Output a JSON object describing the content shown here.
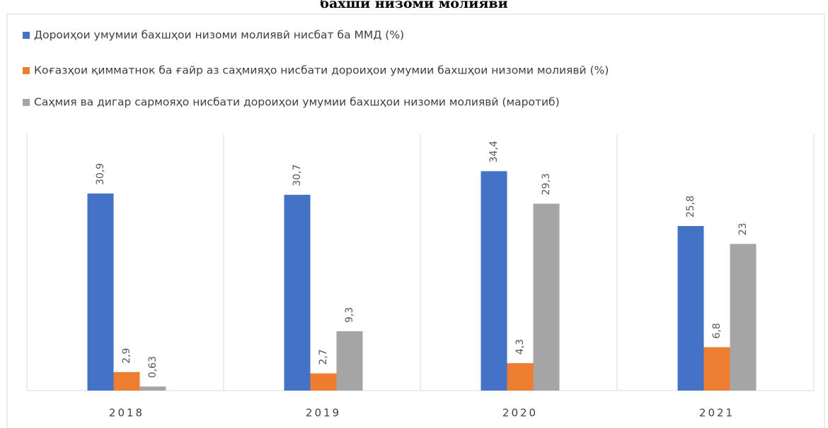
{
  "chart_data": {
    "type": "bar",
    "title": "бахши низоми молиявӣ",
    "categories": [
      "2018",
      "2019",
      "2020",
      "2021"
    ],
    "series": [
      {
        "name": "Дороиҳои умумии бахшҳои низоми молиявӣ нисбат ба ММД (%)",
        "color": "#4472c4",
        "values": [
          30.9,
          30.7,
          34.4,
          25.8
        ],
        "value_labels": [
          "30,9",
          "30,7",
          "34,4",
          "25,8"
        ]
      },
      {
        "name": "Коғазҳои қимматнок ба ғайр аз саҳмияҳо нисбати дороиҳои умумии бахшҳои низоми молиявӣ (%)",
        "color": "#ed7d31",
        "values": [
          2.9,
          2.7,
          4.3,
          6.8
        ],
        "value_labels": [
          "2,9",
          "2,7",
          "4,3",
          "6,8"
        ]
      },
      {
        "name": "Саҳмия ва дигар сармояҳо нисбати дороиҳои умумии бахшҳои низоми молиявӣ (маротиб)",
        "color": "#a5a5a5",
        "values": [
          0.63,
          9.3,
          29.3,
          23
        ],
        "value_labels": [
          "0,63",
          "9,3",
          "29,3",
          "23"
        ]
      }
    ]
  }
}
